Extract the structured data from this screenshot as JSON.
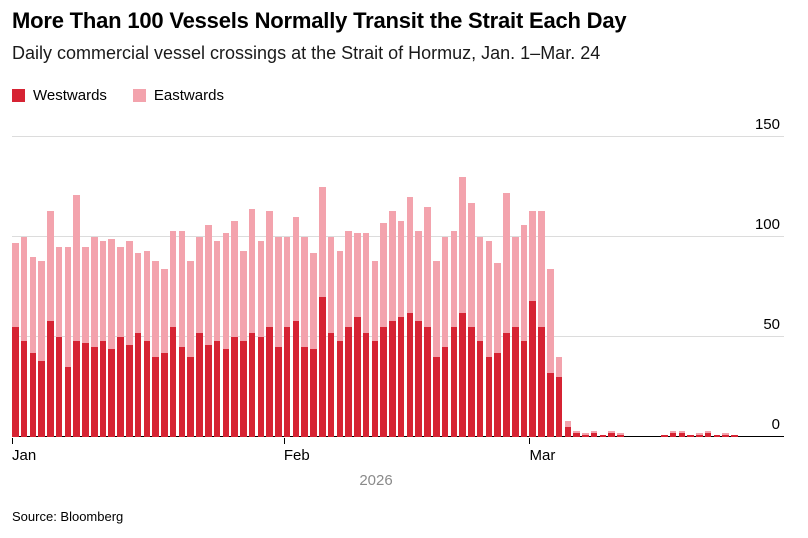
{
  "header": {
    "title": "More Than 100 Vessels Normally Transit the Strait Each Day",
    "subtitle": "Daily commercial vessel crossings at the Strait of Hormuz, Jan. 1–Mar. 24"
  },
  "legend": [
    {
      "label": "Westwards",
      "color": "#d62333"
    },
    {
      "label": "Eastwards",
      "color": "#f3a3ad"
    }
  ],
  "footer": {
    "source": "Source: Bloomberg"
  },
  "chart_data": {
    "type": "bar",
    "stacked": true,
    "title": "More Than 100 Vessels Normally Transit the Strait Each Day",
    "subtitle": "Daily commercial vessel crossings at the Strait of Hormuz, Jan. 1–Mar. 24",
    "x_axis": {
      "label": "2026",
      "ticks": [
        "Jan",
        "Feb",
        "Mar"
      ],
      "tick_indices": [
        0,
        31,
        59
      ],
      "n_days": 83
    },
    "y_axis": {
      "ticks": [
        0,
        50,
        100,
        150
      ],
      "max": 150,
      "position": "right"
    },
    "grid": true,
    "legend_position": "top-left",
    "series": [
      {
        "name": "Westwards",
        "color": "#d62333",
        "values": [
          55,
          48,
          42,
          38,
          58,
          50,
          35,
          48,
          47,
          45,
          48,
          44,
          50,
          46,
          52,
          48,
          40,
          42,
          55,
          45,
          40,
          52,
          46,
          48,
          44,
          50,
          48,
          52,
          50,
          55,
          45,
          55,
          58,
          45,
          44,
          70,
          52,
          48,
          55,
          60,
          52,
          48,
          55,
          58,
          60,
          62,
          58,
          55,
          40,
          45,
          55,
          62,
          55,
          48,
          40,
          42,
          52,
          55,
          48,
          68,
          55,
          32,
          30,
          5,
          2,
          1,
          2,
          1,
          2,
          1,
          0,
          0,
          0,
          0,
          1,
          2,
          2,
          1,
          1,
          2,
          1,
          1,
          1
        ]
      },
      {
        "name": "Eastwards",
        "color": "#f3a3ad",
        "values": [
          42,
          52,
          48,
          50,
          55,
          45,
          60,
          73,
          48,
          55,
          50,
          55,
          45,
          52,
          40,
          45,
          48,
          42,
          48,
          58,
          48,
          48,
          60,
          50,
          58,
          58,
          45,
          62,
          48,
          58,
          55,
          45,
          52,
          55,
          48,
          55,
          48,
          45,
          48,
          42,
          50,
          40,
          52,
          55,
          48,
          58,
          45,
          60,
          48,
          55,
          48,
          68,
          62,
          52,
          58,
          45,
          70,
          45,
          58,
          45,
          58,
          52,
          10,
          3,
          1,
          1,
          1,
          0,
          1,
          1,
          0,
          0,
          0,
          0,
          0,
          1,
          1,
          0,
          1,
          1,
          0,
          1,
          0
        ]
      }
    ]
  }
}
